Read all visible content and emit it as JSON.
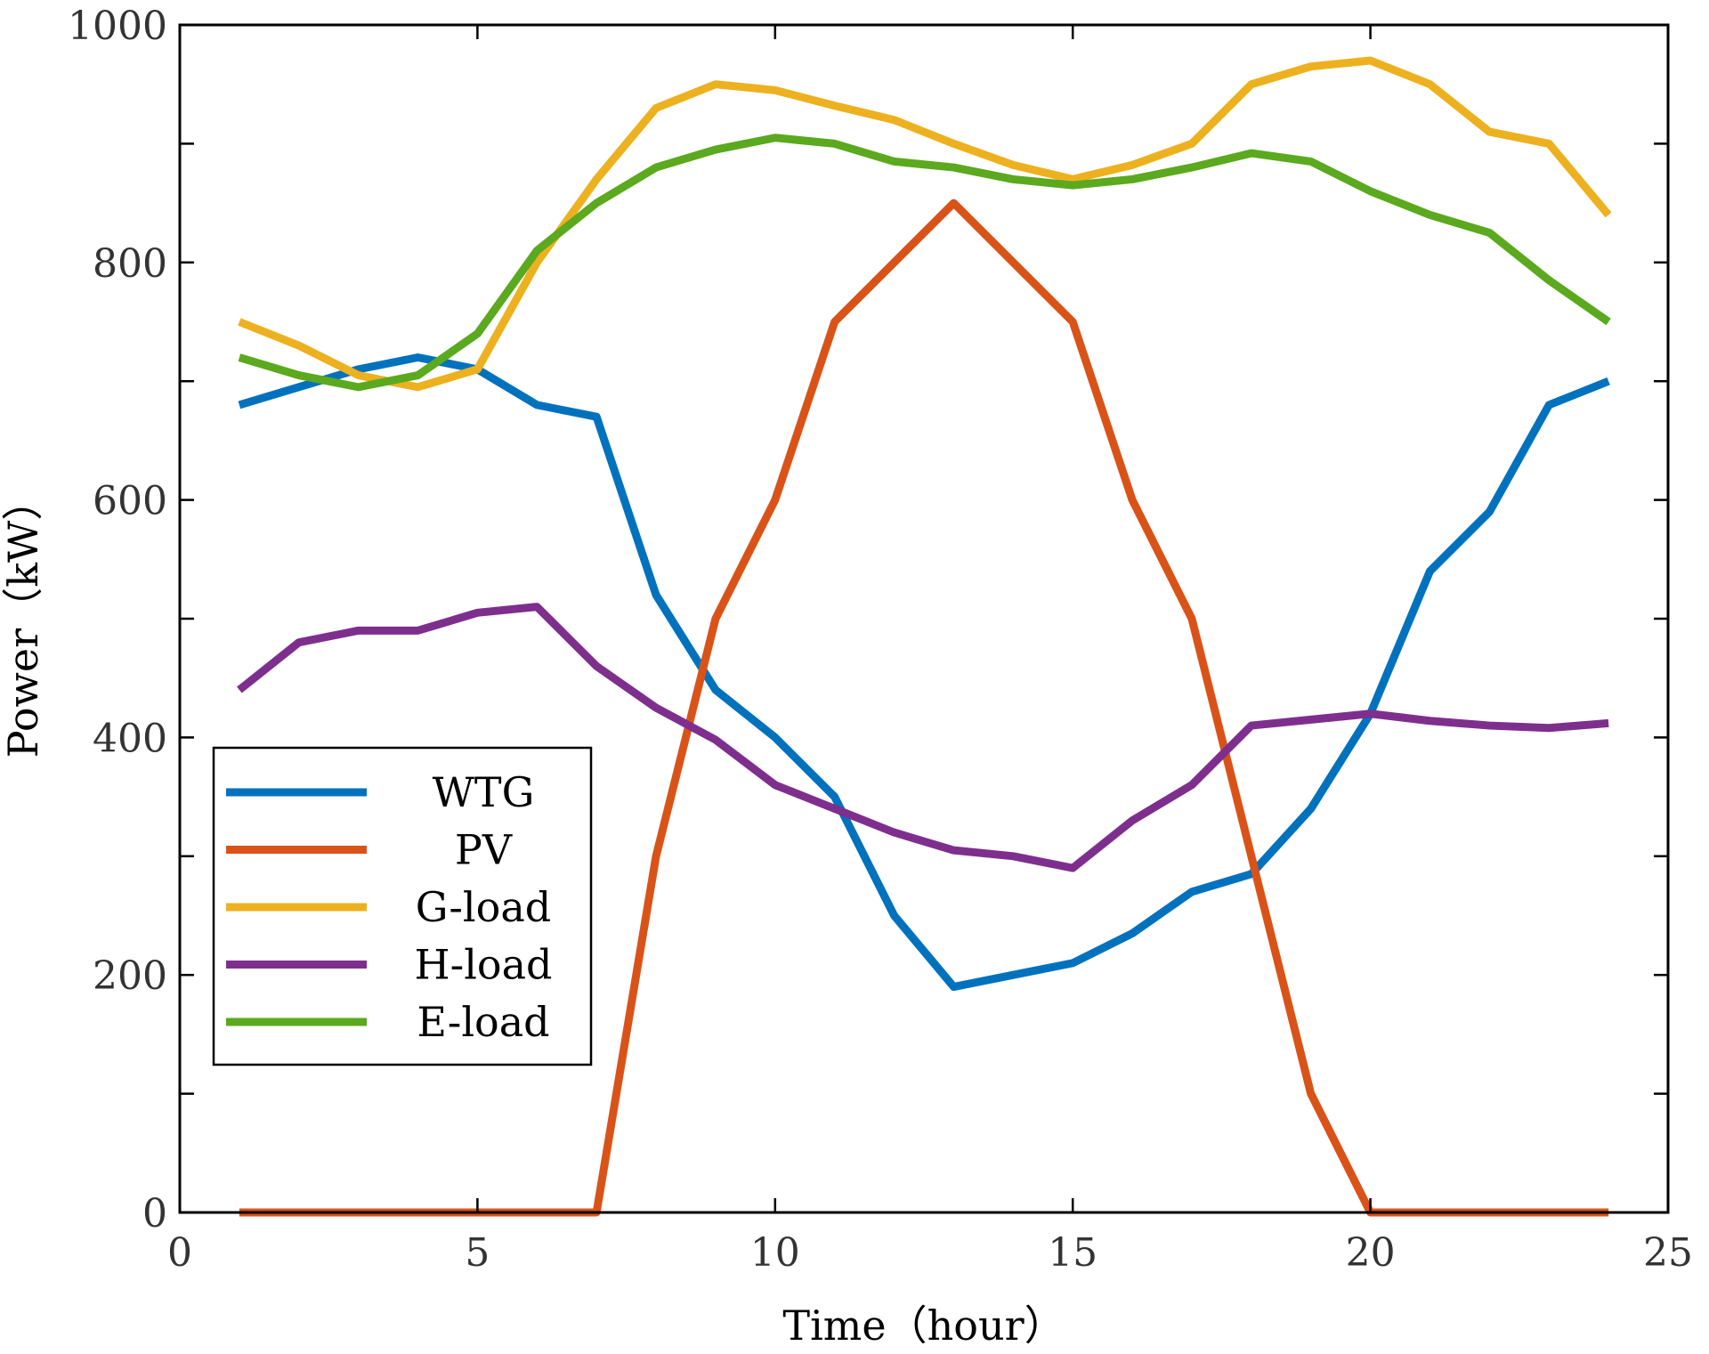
{
  "chart_data": {
    "type": "line",
    "title": "",
    "xlabel": "Time（hour）",
    "ylabel": "Power（kW）",
    "xlim": [
      0,
      25
    ],
    "ylim": [
      0,
      1000
    ],
    "x_ticks": [
      0,
      5,
      10,
      15,
      20,
      25
    ],
    "y_ticks": [
      0,
      200,
      400,
      600,
      800,
      1000
    ],
    "x_minor_ticks": [],
    "y_minor_ticks": [
      100,
      300,
      500,
      700,
      900
    ],
    "grid": false,
    "legend_position": "lower-left",
    "x": [
      1,
      2,
      3,
      4,
      5,
      6,
      7,
      8,
      9,
      10,
      11,
      12,
      13,
      14,
      15,
      16,
      17,
      18,
      19,
      20,
      21,
      22,
      23,
      24
    ],
    "series": [
      {
        "name": "WTG",
        "color": "#0072BD",
        "values": [
          680,
          695,
          710,
          720,
          710,
          680,
          670,
          520,
          440,
          400,
          350,
          250,
          190,
          200,
          210,
          235,
          270,
          285,
          340,
          420,
          540,
          590,
          680,
          700
        ]
      },
      {
        "name": "PV",
        "color": "#D95319",
        "values": [
          0,
          0,
          0,
          0,
          0,
          0,
          0,
          300,
          500,
          600,
          750,
          800,
          850,
          800,
          750,
          600,
          500,
          300,
          100,
          0,
          0,
          0,
          0,
          0
        ]
      },
      {
        "name": "G-load",
        "color": "#EDB120",
        "values": [
          750,
          730,
          705,
          695,
          710,
          800,
          870,
          930,
          950,
          945,
          932,
          920,
          900,
          882,
          870,
          882,
          900,
          950,
          965,
          970,
          950,
          910,
          900,
          840
        ]
      },
      {
        "name": "H-load",
        "color": "#7E2F8E",
        "values": [
          440,
          480,
          490,
          490,
          505,
          510,
          460,
          425,
          398,
          360,
          340,
          320,
          305,
          300,
          290,
          330,
          360,
          410,
          415,
          420,
          414,
          410,
          408,
          412
        ]
      },
      {
        "name": "E-load",
        "color": "#5BA91E",
        "values": [
          720,
          705,
          695,
          705,
          740,
          810,
          850,
          880,
          895,
          905,
          900,
          885,
          880,
          870,
          865,
          870,
          880,
          892,
          885,
          860,
          840,
          825,
          785,
          750
        ]
      }
    ]
  }
}
